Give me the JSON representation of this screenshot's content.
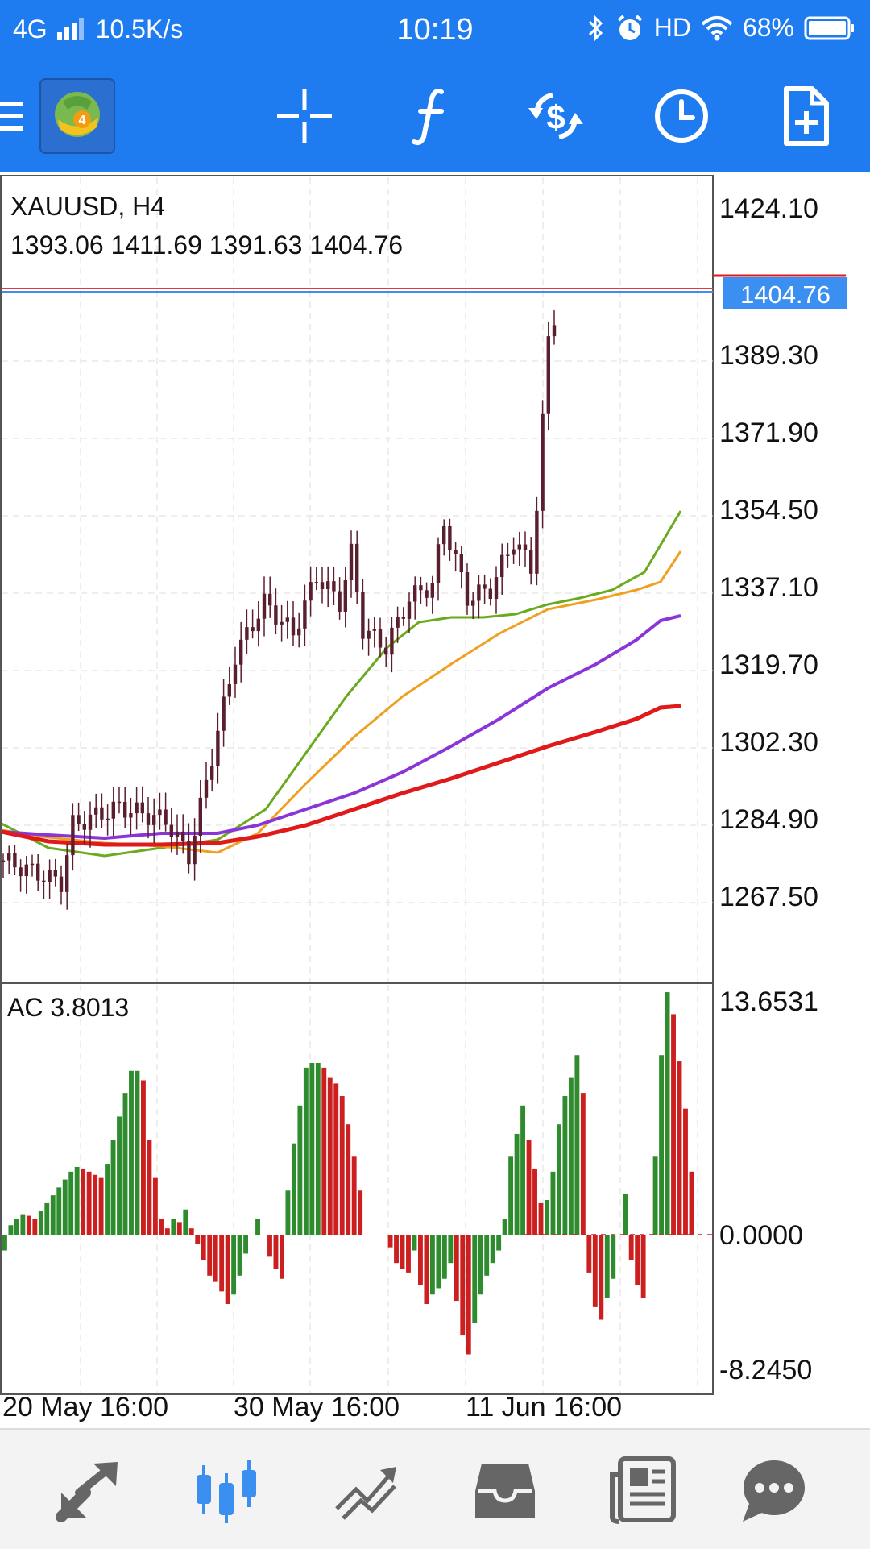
{
  "status_bar": {
    "network": "4G",
    "speed": "10.5K/s",
    "time": "10:19",
    "hd": "HD",
    "battery": "68%"
  },
  "toolbar": {
    "icons": [
      "menu-icon",
      "metatrader-logo",
      "crosshair-icon",
      "function-icon",
      "dollar-exchange-icon",
      "clock-icon",
      "new-document-icon"
    ]
  },
  "chart": {
    "symbol_label": "XAUUSD, H4",
    "ohlc_label": "1393.06 1411.69 1391.63 1404.76",
    "current_price": "1404.76",
    "price_ticks": [
      "1424.10",
      "1389.30",
      "1371.90",
      "1354.50",
      "1337.10",
      "1319.70",
      "1302.30",
      "1284.90",
      "1267.50"
    ],
    "indicator_label": "AC 3.8013",
    "indicator_ticks": [
      "13.6531",
      "0.0000",
      "-8.2450"
    ],
    "time_labels": [
      "20 May 16:00",
      "30 May 16:00",
      "11 Jun 16:00"
    ],
    "colors": {
      "up": "#2e8b2e",
      "down": "#cc1f1f",
      "candle": "#5a1f2e",
      "ma_green": "#6aaa1e",
      "ma_orange": "#f0a020",
      "ma_purple": "#8a35d8",
      "ma_red": "#e01a1a",
      "price_tag": "#3b8ff0"
    }
  },
  "bottom_nav": {
    "items": [
      "quotes-icon",
      "chart-icon",
      "trade-icon",
      "history-icon",
      "news-icon",
      "chat-icon"
    ],
    "active": "chart-icon"
  }
}
